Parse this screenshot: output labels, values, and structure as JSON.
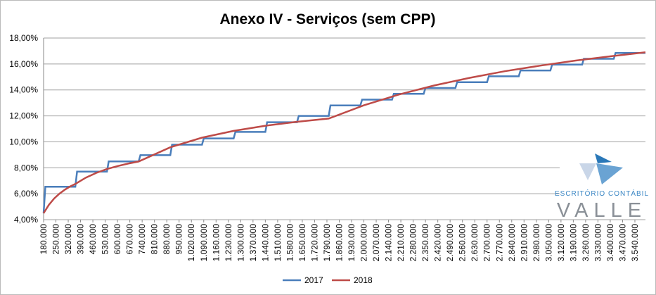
{
  "chart_data": {
    "type": "line",
    "title": "Anexo IV - Serviços (sem CPP)",
    "xlim": [
      180000,
      3600000
    ],
    "xticks": [
      {
        "value": 180000,
        "label": "180.000"
      },
      {
        "value": 250000,
        "label": "250.000"
      },
      {
        "value": 320000,
        "label": "320.000"
      },
      {
        "value": 390000,
        "label": "390.000"
      },
      {
        "value": 460000,
        "label": "460.000"
      },
      {
        "value": 530000,
        "label": "530.000"
      },
      {
        "value": 600000,
        "label": "600.000"
      },
      {
        "value": 670000,
        "label": "670.000"
      },
      {
        "value": 740000,
        "label": "740.000"
      },
      {
        "value": 810000,
        "label": "810.000"
      },
      {
        "value": 880000,
        "label": "880.000"
      },
      {
        "value": 950000,
        "label": "950.000"
      },
      {
        "value": 1020000,
        "label": "1.020.000"
      },
      {
        "value": 1090000,
        "label": "1.090.000"
      },
      {
        "value": 1160000,
        "label": "1.160.000"
      },
      {
        "value": 1230000,
        "label": "1.230.000"
      },
      {
        "value": 1300000,
        "label": "1.300.000"
      },
      {
        "value": 1370000,
        "label": "1.370.000"
      },
      {
        "value": 1440000,
        "label": "1.440.000"
      },
      {
        "value": 1510000,
        "label": "1.510.000"
      },
      {
        "value": 1580000,
        "label": "1.580.000"
      },
      {
        "value": 1650000,
        "label": "1.650.000"
      },
      {
        "value": 1720000,
        "label": "1.720.000"
      },
      {
        "value": 1790000,
        "label": "1.790.000"
      },
      {
        "value": 1860000,
        "label": "1.860.000"
      },
      {
        "value": 1930000,
        "label": "1.930.000"
      },
      {
        "value": 2000000,
        "label": "2.000.000"
      },
      {
        "value": 2070000,
        "label": "2.070.000"
      },
      {
        "value": 2140000,
        "label": "2.140.000"
      },
      {
        "value": 2210000,
        "label": "2.210.000"
      },
      {
        "value": 2280000,
        "label": "2.280.000"
      },
      {
        "value": 2350000,
        "label": "2.350.000"
      },
      {
        "value": 2420000,
        "label": "2.420.000"
      },
      {
        "value": 2490000,
        "label": "2.490.000"
      },
      {
        "value": 2560000,
        "label": "2.560.000"
      },
      {
        "value": 2630000,
        "label": "2.630.000"
      },
      {
        "value": 2700000,
        "label": "2.700.000"
      },
      {
        "value": 2770000,
        "label": "2.770.000"
      },
      {
        "value": 2840000,
        "label": "2.840.000"
      },
      {
        "value": 2910000,
        "label": "2.910.000"
      },
      {
        "value": 2980000,
        "label": "2.980.000"
      },
      {
        "value": 3050000,
        "label": "3.050.000"
      },
      {
        "value": 3120000,
        "label": "3.120.000"
      },
      {
        "value": 3190000,
        "label": "3.190.000"
      },
      {
        "value": 3260000,
        "label": "3.260.000"
      },
      {
        "value": 3330000,
        "label": "3.330.000"
      },
      {
        "value": 3400000,
        "label": "3.400.000"
      },
      {
        "value": 3470000,
        "label": "3.470.000"
      },
      {
        "value": 3540000,
        "label": "3.540.000"
      }
    ],
    "ylim": [
      4,
      18
    ],
    "yticks": [
      {
        "value": 4,
        "label": "4,00%"
      },
      {
        "value": 6,
        "label": "6,00%"
      },
      {
        "value": 8,
        "label": "8,00%"
      },
      {
        "value": 10,
        "label": "10,00%"
      },
      {
        "value": 12,
        "label": "12,00%"
      },
      {
        "value": 14,
        "label": "14,00%"
      },
      {
        "value": 16,
        "label": "16,00%"
      },
      {
        "value": 18,
        "label": "18,00%"
      }
    ],
    "grid": true,
    "legend": "bottom",
    "series": [
      {
        "name": "2017",
        "color": "#4a7ebb",
        "x": [
          180000,
          190000,
          360000,
          370000,
          540000,
          550000,
          720000,
          730000,
          900000,
          910000,
          1080000,
          1090000,
          1260000,
          1270000,
          1440000,
          1450000,
          1620000,
          1630000,
          1800000,
          1810000,
          1980000,
          1990000,
          2160000,
          2170000,
          2340000,
          2350000,
          2520000,
          2530000,
          2700000,
          2710000,
          2880000,
          2890000,
          3060000,
          3070000,
          3240000,
          3250000,
          3420000,
          3430000,
          3600000
        ],
        "values": [
          4.5,
          6.54,
          6.54,
          7.7,
          7.7,
          8.49,
          8.49,
          8.97,
          8.97,
          9.78,
          9.78,
          10.26,
          10.26,
          10.76,
          10.76,
          11.51,
          11.51,
          12,
          12,
          12.8,
          12.8,
          13.25,
          13.25,
          13.7,
          13.7,
          14.15,
          14.15,
          14.6,
          14.6,
          15.05,
          15.05,
          15.5,
          15.5,
          15.95,
          15.95,
          16.4,
          16.4,
          16.85,
          16.85
        ]
      },
      {
        "name": "2018",
        "color": "#be4b48",
        "x": [
          180000,
          210000,
          240000,
          270000,
          300000,
          330000,
          360000,
          420000,
          480000,
          540000,
          600000,
          660000,
          720000,
          900000,
          1080000,
          1260000,
          1440000,
          1620000,
          1800000,
          2000000,
          2200000,
          2400000,
          2600000,
          2800000,
          3000000,
          3200000,
          3400000,
          3600000
        ],
        "values": [
          4.5,
          5.14,
          5.63,
          6.0,
          6.3,
          6.55,
          6.75,
          7.24,
          7.61,
          7.9,
          8.13,
          8.32,
          8.48,
          9.58,
          10.32,
          10.84,
          11.24,
          11.54,
          11.79,
          12.81,
          13.65,
          14.34,
          14.93,
          15.44,
          15.87,
          16.26,
          16.59,
          16.9
        ]
      }
    ]
  },
  "logo": {
    "line1": "ESCRITÓRIO CONTÁBIL",
    "line2": "VALLE"
  }
}
